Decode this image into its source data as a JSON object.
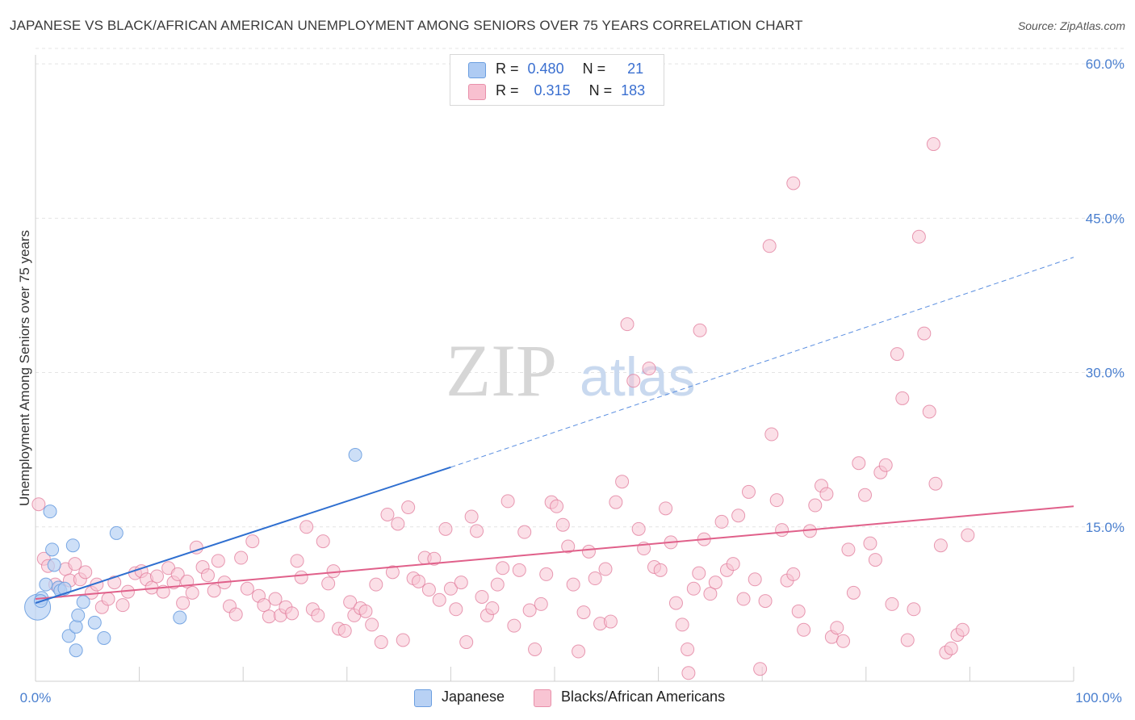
{
  "title": "JAPANESE VS BLACK/AFRICAN AMERICAN UNEMPLOYMENT AMONG SENIORS OVER 75 YEARS CORRELATION CHART",
  "source": "Source: ZipAtlas.com",
  "watermark": {
    "part1": "ZIP",
    "part2": "atlas"
  },
  "legend": {
    "rows": [
      {
        "r_label": "R =",
        "r_value": "0.480",
        "n_label": "N =",
        "n_value": "21",
        "color": "#aecbf3",
        "border": "#6b9ee0"
      },
      {
        "r_label": "R =",
        "r_value": "0.315",
        "n_label": "N =",
        "n_value": "183",
        "color": "#f8c0d0",
        "border": "#e890aa"
      }
    ]
  },
  "bottom_legend": [
    {
      "label": "Japanese",
      "color": "#b8d1f4",
      "border": "#6b9ee0"
    },
    {
      "label": "Blacks/African Americans",
      "color": "#f8c4d3",
      "border": "#e890aa"
    }
  ],
  "chart_data": {
    "type": "scatter",
    "title": "JAPANESE VS BLACK/AFRICAN AMERICAN UNEMPLOYMENT AMONG SENIORS OVER 75 YEARS CORRELATION CHART",
    "ylabel": "Unemployment Among Seniors over 75 years",
    "xlabel": "",
    "xlim": [
      0,
      100
    ],
    "ylim": [
      0,
      61.5
    ],
    "x_tick_labels": [
      "0.0%",
      "100.0%"
    ],
    "y_ticks": [
      15,
      30,
      45,
      60
    ],
    "y_tick_labels": [
      "15.0%",
      "30.0%",
      "45.0%",
      "60.0%"
    ],
    "grid": "horizontal dashed",
    "legend_position": "top-center",
    "series": [
      {
        "name": "Japanese",
        "color": "#6b9ee0",
        "fill": "#b8d1f4",
        "r": 0.48,
        "n": 21,
        "trend": {
          "x0": 0,
          "y0": 7.6,
          "x1": 40,
          "y1": 20.8,
          "dashed_to_x": 100,
          "dashed_to_y": 41.2
        },
        "points": [
          [
            0.2,
            7.2
          ],
          [
            0.6,
            8.1
          ],
          [
            1.0,
            9.4
          ],
          [
            1.4,
            16.5
          ],
          [
            1.6,
            12.8
          ],
          [
            1.8,
            11.3
          ],
          [
            2.2,
            9.1
          ],
          [
            2.4,
            8.8
          ],
          [
            2.8,
            9.0
          ],
          [
            3.2,
            4.4
          ],
          [
            3.6,
            13.2
          ],
          [
            3.9,
            5.3
          ],
          [
            4.1,
            6.4
          ],
          [
            4.6,
            7.7
          ],
          [
            5.7,
            5.7
          ],
          [
            6.6,
            4.2
          ],
          [
            7.8,
            14.4
          ],
          [
            13.9,
            6.2
          ],
          [
            3.9,
            3.0
          ],
          [
            0.5,
            7.8
          ],
          [
            30.8,
            22.0
          ]
        ]
      },
      {
        "name": "Blacks/African Americans",
        "color": "#e07a9a",
        "fill": "#f8c4d3",
        "r": 0.315,
        "n": 183,
        "trend": {
          "x0": 0,
          "y0": 8.0,
          "x1": 100,
          "y1": 17.0
        },
        "points": [
          [
            0.3,
            17.2
          ],
          [
            0.8,
            11.9
          ],
          [
            1.2,
            11.2
          ],
          [
            1.9,
            9.4
          ],
          [
            2.3,
            9.1
          ],
          [
            2.9,
            10.9
          ],
          [
            3.3,
            9.8
          ],
          [
            3.8,
            11.4
          ],
          [
            4.3,
            9.9
          ],
          [
            4.8,
            10.6
          ],
          [
            5.4,
            8.6
          ],
          [
            5.9,
            9.4
          ],
          [
            6.4,
            7.2
          ],
          [
            7.0,
            8.0
          ],
          [
            7.6,
            9.6
          ],
          [
            8.4,
            7.4
          ],
          [
            8.9,
            8.7
          ],
          [
            9.6,
            10.5
          ],
          [
            10.2,
            10.7
          ],
          [
            10.7,
            9.9
          ],
          [
            11.2,
            9.1
          ],
          [
            11.7,
            10.2
          ],
          [
            12.3,
            8.7
          ],
          [
            12.8,
            11.0
          ],
          [
            13.3,
            9.6
          ],
          [
            13.7,
            10.4
          ],
          [
            14.2,
            7.6
          ],
          [
            14.6,
            9.7
          ],
          [
            15.1,
            8.6
          ],
          [
            15.5,
            13.0
          ],
          [
            16.1,
            11.1
          ],
          [
            16.6,
            10.3
          ],
          [
            17.2,
            8.8
          ],
          [
            17.6,
            11.7
          ],
          [
            18.2,
            9.6
          ],
          [
            18.7,
            7.3
          ],
          [
            19.3,
            6.5
          ],
          [
            19.8,
            12.0
          ],
          [
            20.4,
            9.0
          ],
          [
            20.9,
            13.6
          ],
          [
            21.5,
            8.3
          ],
          [
            22.0,
            7.4
          ],
          [
            22.5,
            6.3
          ],
          [
            23.1,
            8.0
          ],
          [
            23.6,
            6.4
          ],
          [
            24.1,
            7.2
          ],
          [
            24.7,
            6.6
          ],
          [
            25.2,
            11.7
          ],
          [
            25.6,
            10.1
          ],
          [
            26.1,
            15.0
          ],
          [
            26.7,
            7.0
          ],
          [
            27.2,
            6.4
          ],
          [
            27.7,
            13.6
          ],
          [
            28.2,
            9.5
          ],
          [
            28.7,
            10.7
          ],
          [
            29.2,
            5.1
          ],
          [
            29.8,
            4.9
          ],
          [
            30.3,
            7.7
          ],
          [
            30.7,
            6.4
          ],
          [
            31.3,
            7.1
          ],
          [
            31.8,
            6.8
          ],
          [
            32.4,
            5.5
          ],
          [
            32.8,
            9.4
          ],
          [
            33.3,
            3.8
          ],
          [
            33.9,
            16.2
          ],
          [
            34.4,
            10.6
          ],
          [
            34.9,
            15.3
          ],
          [
            35.4,
            4.0
          ],
          [
            35.9,
            16.9
          ],
          [
            36.4,
            10.0
          ],
          [
            36.9,
            9.7
          ],
          [
            37.5,
            12.0
          ],
          [
            37.9,
            8.9
          ],
          [
            38.4,
            11.9
          ],
          [
            38.9,
            7.9
          ],
          [
            39.5,
            14.8
          ],
          [
            40.0,
            9.0
          ],
          [
            40.5,
            7.0
          ],
          [
            41.0,
            9.6
          ],
          [
            41.5,
            3.8
          ],
          [
            42.0,
            16.0
          ],
          [
            42.5,
            14.6
          ],
          [
            43.0,
            8.2
          ],
          [
            43.5,
            6.4
          ],
          [
            44.0,
            7.1
          ],
          [
            44.5,
            9.4
          ],
          [
            45.0,
            11.0
          ],
          [
            45.5,
            17.5
          ],
          [
            46.1,
            5.4
          ],
          [
            46.6,
            10.8
          ],
          [
            47.1,
            14.5
          ],
          [
            47.6,
            6.9
          ],
          [
            48.1,
            3.1
          ],
          [
            48.7,
            7.5
          ],
          [
            49.2,
            10.4
          ],
          [
            49.7,
            17.4
          ],
          [
            50.2,
            17.0
          ],
          [
            50.8,
            15.2
          ],
          [
            51.3,
            13.1
          ],
          [
            51.8,
            9.4
          ],
          [
            52.3,
            2.9
          ],
          [
            52.8,
            6.7
          ],
          [
            53.3,
            12.6
          ],
          [
            53.9,
            10.0
          ],
          [
            54.4,
            5.6
          ],
          [
            54.9,
            10.9
          ],
          [
            55.4,
            5.8
          ],
          [
            55.9,
            17.4
          ],
          [
            56.5,
            19.4
          ],
          [
            57.0,
            34.7
          ],
          [
            57.6,
            29.2
          ],
          [
            58.1,
            14.8
          ],
          [
            58.6,
            12.9
          ],
          [
            59.1,
            30.4
          ],
          [
            59.6,
            11.1
          ],
          [
            60.2,
            10.8
          ],
          [
            60.7,
            16.8
          ],
          [
            61.2,
            13.5
          ],
          [
            61.7,
            7.6
          ],
          [
            62.3,
            5.5
          ],
          [
            62.8,
            3.1
          ],
          [
            63.4,
            9.0
          ],
          [
            63.9,
            10.5
          ],
          [
            64.4,
            13.8
          ],
          [
            65.0,
            8.5
          ],
          [
            65.5,
            9.6
          ],
          [
            66.1,
            15.5
          ],
          [
            66.6,
            10.8
          ],
          [
            67.2,
            11.4
          ],
          [
            67.7,
            16.1
          ],
          [
            68.2,
            8.0
          ],
          [
            68.7,
            18.4
          ],
          [
            69.3,
            9.9
          ],
          [
            69.8,
            1.2
          ],
          [
            70.3,
            7.8
          ],
          [
            70.9,
            24.0
          ],
          [
            71.4,
            17.6
          ],
          [
            71.9,
            14.7
          ],
          [
            72.4,
            9.8
          ],
          [
            73.0,
            10.4
          ],
          [
            73.5,
            6.8
          ],
          [
            74.0,
            5.0
          ],
          [
            74.6,
            14.6
          ],
          [
            75.1,
            17.1
          ],
          [
            75.7,
            19.0
          ],
          [
            76.2,
            18.2
          ],
          [
            76.7,
            4.3
          ],
          [
            77.2,
            5.2
          ],
          [
            77.8,
            3.9
          ],
          [
            78.3,
            12.8
          ],
          [
            78.8,
            8.6
          ],
          [
            79.3,
            21.2
          ],
          [
            79.9,
            18.1
          ],
          [
            80.4,
            13.4
          ],
          [
            80.9,
            11.8
          ],
          [
            81.4,
            20.3
          ],
          [
            81.9,
            21.0
          ],
          [
            82.5,
            7.5
          ],
          [
            83.0,
            31.8
          ],
          [
            83.5,
            27.5
          ],
          [
            84.0,
            4.0
          ],
          [
            84.6,
            7.0
          ],
          [
            85.1,
            43.2
          ],
          [
            85.6,
            33.8
          ],
          [
            86.1,
            26.2
          ],
          [
            86.7,
            19.2
          ],
          [
            87.2,
            13.2
          ],
          [
            87.7,
            2.8
          ],
          [
            88.2,
            3.2
          ],
          [
            88.8,
            4.5
          ],
          [
            89.3,
            5.0
          ],
          [
            89.8,
            14.2
          ],
          [
            64.0,
            34.1
          ],
          [
            70.7,
            42.3
          ],
          [
            73.0,
            48.4
          ],
          [
            86.5,
            52.2
          ],
          [
            62.9,
            0.8
          ]
        ]
      }
    ]
  }
}
